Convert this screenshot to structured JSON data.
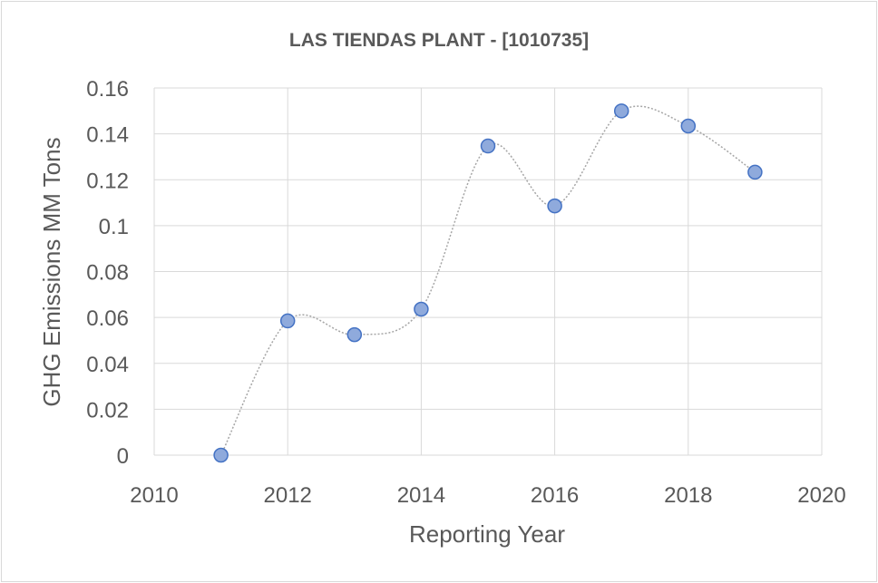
{
  "chart_data": {
    "type": "scatter",
    "title": "LAS TIENDAS PLANT - [1010735]",
    "xlabel": "Reporting Year",
    "ylabel": "GHG Emissions MM Tons",
    "xlim": [
      2010,
      2020
    ],
    "ylim": [
      0,
      0.16
    ],
    "xticks": [
      "2010",
      "2012",
      "2014",
      "2016",
      "2018",
      "2020"
    ],
    "yticks": [
      "0",
      "0.02",
      "0.04",
      "0.06",
      "0.08",
      "0.1",
      "0.12",
      "0.14",
      "0.16"
    ],
    "grid": true,
    "line_style": "smoothed-dotted",
    "series": [
      {
        "name": "GHG Emissions",
        "x": [
          2011,
          2012,
          2013,
          2014,
          2015,
          2016,
          2017,
          2018,
          2019
        ],
        "y": [
          0,
          0.0585,
          0.0525,
          0.0636,
          0.1347,
          0.1086,
          0.15,
          0.1434,
          0.1233
        ]
      }
    ],
    "colors": {
      "marker_fill": "#8faadc",
      "marker_stroke": "#4472c4",
      "line": "#a6a6a6",
      "grid": "#d9d9d9",
      "text": "#595959"
    }
  }
}
